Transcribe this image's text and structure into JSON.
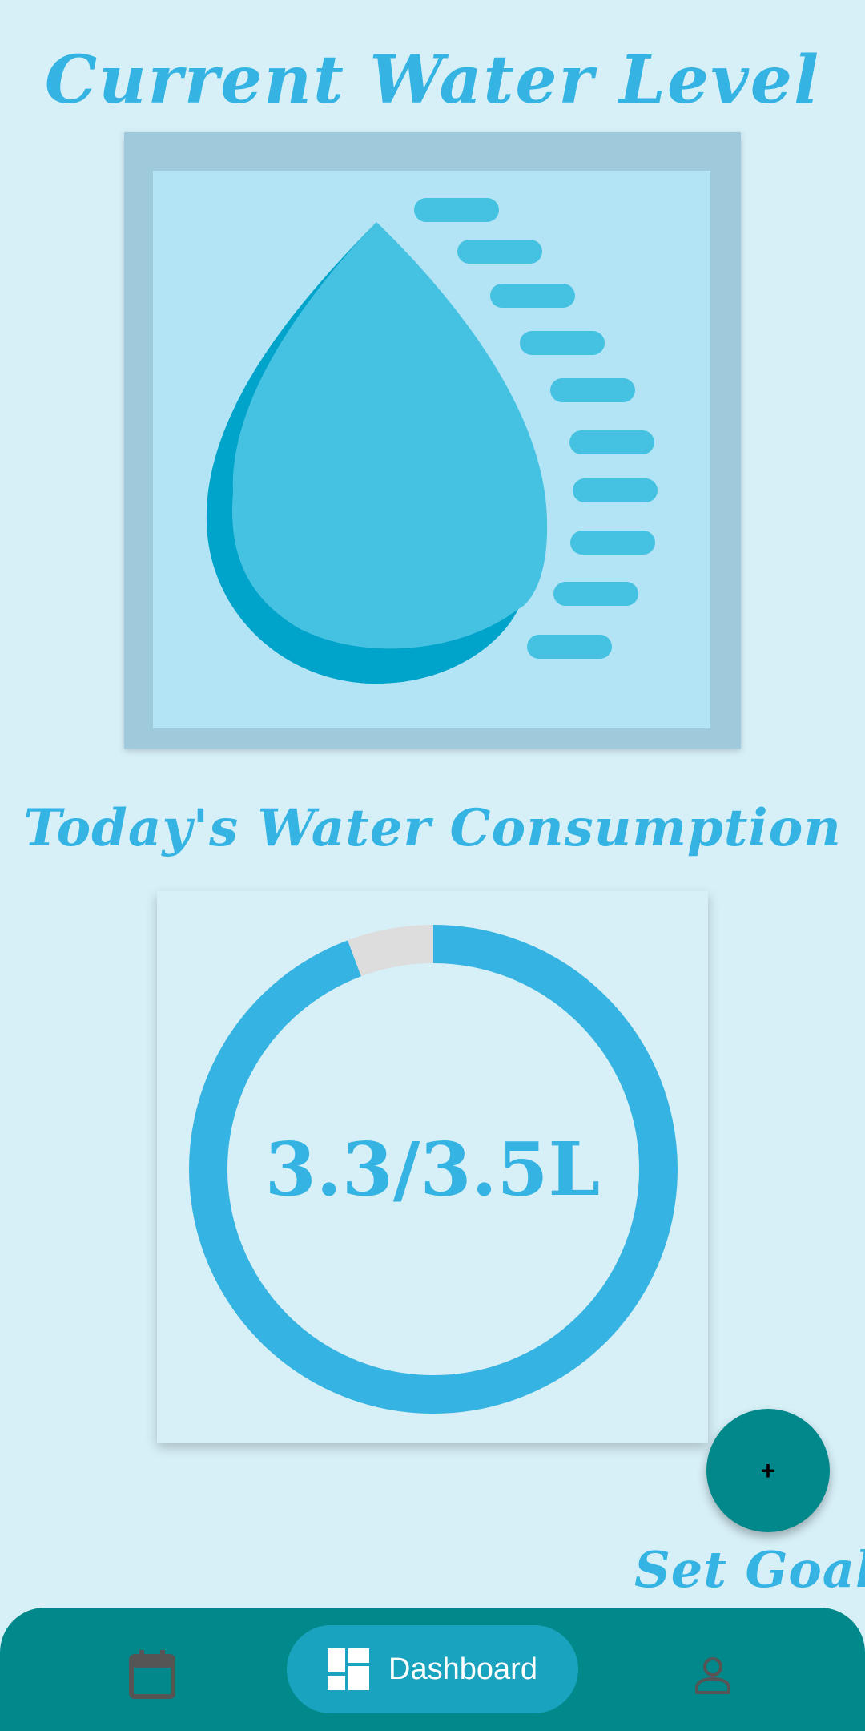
{
  "colors": {
    "background": "#d7f0f8",
    "accent": "#35b4e3",
    "primary": "#00888a",
    "ring_track": "#dddddd",
    "nav_active": "#1aa3be"
  },
  "water_level": {
    "title": "Current Water Level",
    "image_icon": "water-drop-icon"
  },
  "consumption": {
    "title": "Today's Water Consumption",
    "display": "3.3/3.5L",
    "current_liters": 3.3,
    "goal_liters": 3.5
  },
  "fab": {
    "icon": "+",
    "label": "Set Goal"
  },
  "bottom_nav": {
    "items": [
      {
        "id": "calendar",
        "icon": "calendar-icon",
        "label": ""
      },
      {
        "id": "dashboard",
        "icon": "dashboard-icon",
        "label": "Dashboard",
        "active": true
      },
      {
        "id": "profile",
        "icon": "person-icon",
        "label": ""
      }
    ]
  }
}
